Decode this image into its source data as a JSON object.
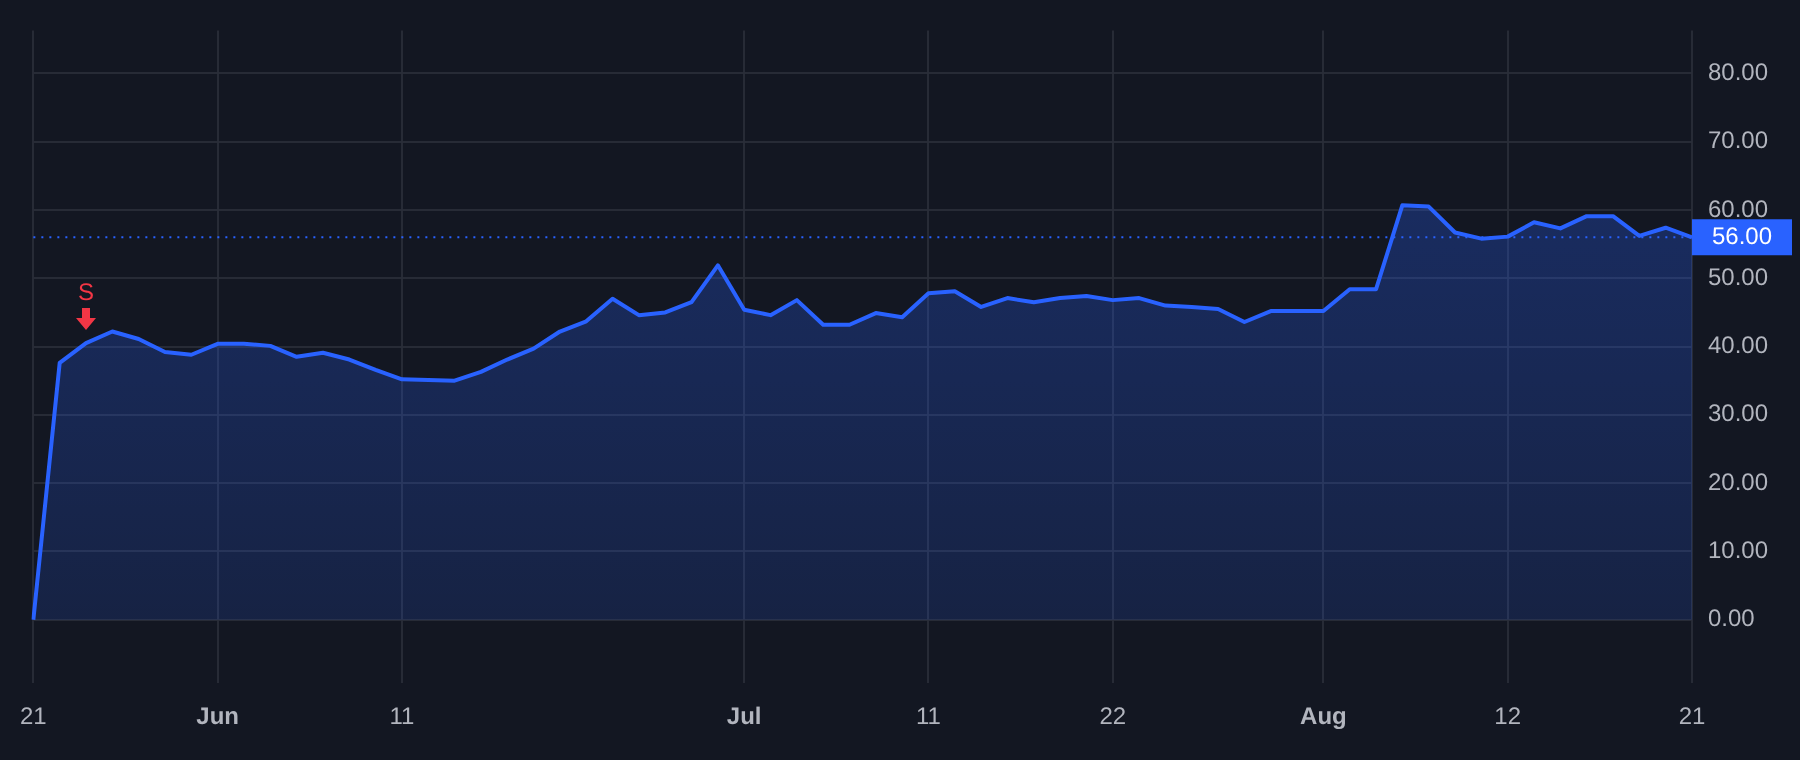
{
  "chart_data": {
    "type": "area",
    "categories": [
      "21",
      null,
      null,
      null,
      null,
      null,
      null,
      "Jun",
      null,
      null,
      null,
      null,
      null,
      null,
      "11",
      null,
      null,
      null,
      null,
      null,
      null,
      null,
      null,
      null,
      null,
      null,
      null,
      "Jul",
      null,
      null,
      null,
      null,
      null,
      null,
      "11",
      null,
      null,
      null,
      null,
      null,
      null,
      "22",
      null,
      null,
      null,
      null,
      null,
      null,
      null,
      "Aug",
      null,
      null,
      null,
      null,
      null,
      null,
      "12",
      null,
      null,
      null,
      null,
      null,
      null,
      "21"
    ],
    "series": [
      {
        "color": "#2962ff",
        "values": [
          0,
          37.6,
          40.5,
          42.2,
          41.1,
          39.2,
          38.8,
          40.4,
          40.4,
          40.1,
          38.5,
          39.1,
          38.1,
          36.6,
          35.2,
          35.1,
          35.0,
          36.3,
          38.1,
          39.7,
          42.2,
          43.7,
          47.0,
          44.6,
          45.0,
          46.5,
          51.9,
          45.4,
          44.6,
          46.8,
          43.2,
          43.2,
          44.9,
          44.3,
          47.8,
          48.1,
          45.8,
          47.1,
          46.5,
          47.1,
          47.4,
          46.8,
          47.1,
          46.0,
          45.8,
          45.5,
          43.6,
          45.2,
          45.2,
          45.2,
          48.4,
          48.4,
          60.7,
          60.5,
          56.7,
          55.8,
          56.1,
          58.2,
          57.3,
          59.1,
          59.1,
          56.2,
          57.4,
          56.0
        ]
      }
    ],
    "ylim": [
      -9.3,
      86.3
    ],
    "yticks": [
      {
        "value": 0,
        "label": "0.00"
      },
      {
        "value": 10,
        "label": "10.00"
      },
      {
        "value": 20,
        "label": "20.00"
      },
      {
        "value": 30,
        "label": "30.00"
      },
      {
        "value": 40,
        "label": "40.00"
      },
      {
        "value": 50,
        "label": "50.00"
      },
      {
        "value": 60,
        "label": "60.00"
      },
      {
        "value": 70,
        "label": "70.00"
      },
      {
        "value": 80,
        "label": "80.00"
      }
    ],
    "grid": true,
    "ref_lines": [
      {
        "axis": "y",
        "value": 56,
        "label": "56.00",
        "color": "#2962ff",
        "line_style": "dotted"
      }
    ],
    "annotations": [
      "S"
    ]
  }
}
